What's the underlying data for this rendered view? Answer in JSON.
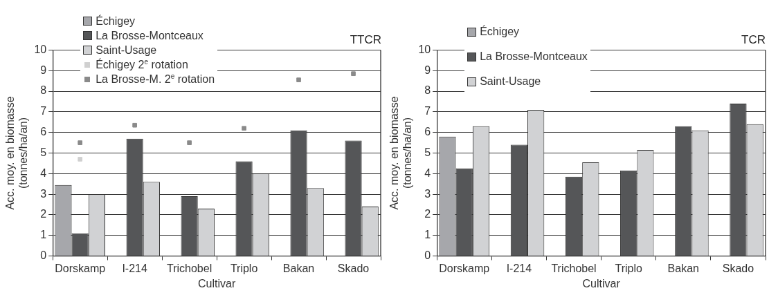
{
  "chart_data": [
    {
      "type": "bar",
      "title": "TTCR",
      "xlabel": "Cultivar",
      "ylabel": "Acc. moy. en biomasse\n(tonnes/ha/an)",
      "categories": [
        "Dorskamp",
        "I-214",
        "Trichobel",
        "Triplo",
        "Bakan",
        "Skado"
      ],
      "series": [
        {
          "name": "Échigey",
          "color": "#a6a7ab",
          "values": [
            3.45,
            null,
            null,
            null,
            null,
            null
          ]
        },
        {
          "name": "La Brosse-Montceaux",
          "color": "#555658",
          "values": [
            1.1,
            5.7,
            2.9,
            4.6,
            6.1,
            5.6
          ]
        },
        {
          "name": "Saint-Usage",
          "color": "#d1d2d4",
          "values": [
            3.0,
            3.6,
            2.3,
            4.0,
            3.3,
            2.4
          ]
        },
        {
          "name": "Échigey 2$^{e}$ rotation",
          "type": "scatter",
          "color": "#d0d0d0",
          "marker": "square",
          "x": [
            "Dorskamp"
          ],
          "values": [
            4.7
          ]
        },
        {
          "name": "La Brosse-M. 2$^{e}$ rotation",
          "type": "scatter",
          "color": "#8a8a8a",
          "marker": "square",
          "x": [
            "Dorskamp",
            "I-214",
            "Trichobel",
            "Triplo",
            "Bakan",
            "Skado"
          ],
          "values": [
            5.5,
            6.35,
            5.5,
            6.2,
            8.55,
            8.85
          ]
        }
      ],
      "ylim": [
        0,
        10
      ],
      "yticks": [
        0,
        1,
        2,
        3,
        4,
        5,
        6,
        7,
        8,
        9,
        10
      ],
      "grid": "y",
      "legend": "top left"
    },
    {
      "type": "bar",
      "title": "TCR",
      "xlabel": "Cultivar",
      "ylabel": "Acc. moy. en biomasse\n(tonnes/ha/an)",
      "categories": [
        "Dorskamp",
        "I-214",
        "Trichobel",
        "Triplo",
        "Bakan",
        "Skado"
      ],
      "series": [
        {
          "name": "Échigey",
          "color": "#a6a7ab",
          "values": [
            5.8,
            null,
            null,
            null,
            null,
            null
          ]
        },
        {
          "name": "La Brosse-Montceaux",
          "color": "#555658",
          "values": [
            4.25,
            5.4,
            3.85,
            4.15,
            6.3,
            7.4
          ]
        },
        {
          "name": "Saint-Usage",
          "color": "#d1d2d4",
          "values": [
            6.3,
            7.1,
            4.55,
            5.15,
            6.1,
            6.4
          ]
        }
      ],
      "ylim": [
        0,
        10
      ],
      "yticks": [
        0,
        1,
        2,
        3,
        4,
        5,
        6,
        7,
        8,
        9,
        10
      ],
      "grid": "y",
      "legend": "top left"
    }
  ]
}
